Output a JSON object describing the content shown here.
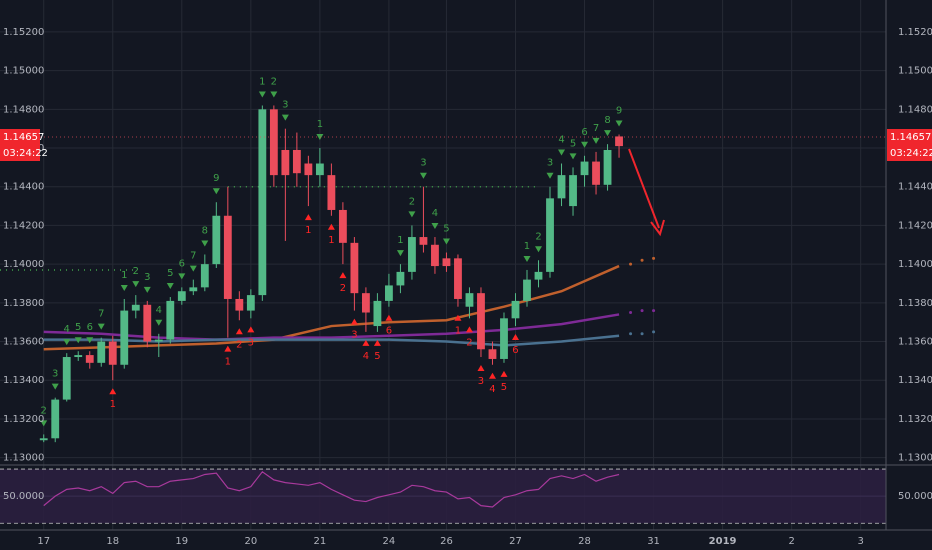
{
  "chart_data": [
    {
      "type": "candlestick",
      "xlim": [
        -3.8,
        73.2
      ],
      "xticks": [
        {
          "value": 0,
          "label": "17"
        },
        {
          "value": 6,
          "label": "18"
        },
        {
          "value": 12,
          "label": "19"
        },
        {
          "value": 18,
          "label": "20"
        },
        {
          "value": 24,
          "label": "21"
        },
        {
          "value": 30,
          "label": "24"
        },
        {
          "value": 35,
          "label": "26"
        },
        {
          "value": 41,
          "label": "27"
        },
        {
          "value": 47,
          "label": "28"
        },
        {
          "value": 53,
          "label": "31"
        },
        {
          "value": 59,
          "label": "2019"
        },
        {
          "value": 65,
          "label": "2"
        },
        {
          "value": 71,
          "label": "3"
        }
      ],
      "ylim": [
        1.12962,
        1.15365
      ],
      "yticks": [
        {
          "value": 1.152,
          "label": "1.15200"
        },
        {
          "value": 1.15,
          "label": "1.15000"
        },
        {
          "value": 1.148,
          "label": "1.14800"
        },
        {
          "value": 1.146,
          "label": "1.14600"
        },
        {
          "value": 1.144,
          "label": "1.14400"
        },
        {
          "value": 1.142,
          "label": "1.14200"
        },
        {
          "value": 1.14,
          "label": "1.14000"
        },
        {
          "value": 1.138,
          "label": "1.13800"
        },
        {
          "value": 1.136,
          "label": "1.13600"
        },
        {
          "value": 1.134,
          "label": "1.13400"
        },
        {
          "value": 1.132,
          "label": "1.13200"
        },
        {
          "value": 1.13,
          "label": "1.13000"
        }
      ],
      "grid": true,
      "up_color": "#53b987",
      "down_color": "#eb4d5c",
      "open": [
        1.1309,
        1.131,
        1.133,
        1.1352,
        1.1353,
        1.1349,
        1.136,
        1.1348,
        1.1376,
        1.1379,
        1.136,
        1.1361,
        1.1381,
        1.1386,
        1.1388,
        1.14,
        1.1425,
        1.1382,
        1.1376,
        1.1384,
        1.148,
        1.1459,
        1.1459,
        1.1452,
        1.1446,
        1.1446,
        1.1428,
        1.1411,
        1.1385,
        1.1368,
        1.1381,
        1.1389,
        1.1396,
        1.1414,
        1.141,
        1.1403,
        1.1403,
        1.1378,
        1.1385,
        1.1356,
        1.1351,
        1.1372,
        1.1381,
        1.1392,
        1.1396,
        1.1434,
        1.143,
        1.1446,
        1.1453,
        1.1441,
        1.1466
      ],
      "high": [
        1.1312,
        1.1331,
        1.1354,
        1.1355,
        1.1355,
        1.1362,
        1.1363,
        1.1382,
        1.1384,
        1.1381,
        1.1364,
        1.1383,
        1.1388,
        1.1392,
        1.1405,
        1.1432,
        1.144,
        1.1386,
        1.1387,
        1.1482,
        1.1482,
        1.147,
        1.1468,
        1.1456,
        1.146,
        1.1452,
        1.1432,
        1.1414,
        1.1388,
        1.1385,
        1.1395,
        1.14,
        1.142,
        1.144,
        1.1414,
        1.1406,
        1.1405,
        1.1388,
        1.1388,
        1.136,
        1.1375,
        1.1385,
        1.1397,
        1.1402,
        1.144,
        1.1452,
        1.145,
        1.1456,
        1.1458,
        1.1462,
        1.1467
      ],
      "low": [
        1.1308,
        1.1308,
        1.1329,
        1.135,
        1.1346,
        1.1347,
        1.134,
        1.1346,
        1.1372,
        1.1357,
        1.1352,
        1.1359,
        1.1379,
        1.1384,
        1.1386,
        1.1398,
        1.1362,
        1.1371,
        1.1372,
        1.1381,
        1.144,
        1.1412,
        1.144,
        1.143,
        1.144,
        1.1425,
        1.14,
        1.1376,
        1.1365,
        1.1365,
        1.1378,
        1.1385,
        1.1392,
        1.1406,
        1.1395,
        1.1396,
        1.1378,
        1.1372,
        1.1352,
        1.1348,
        1.1349,
        1.1368,
        1.1378,
        1.1388,
        1.1393,
        1.143,
        1.1425,
        1.144,
        1.1436,
        1.1438,
        1.1455
      ],
      "close": [
        1.131,
        1.133,
        1.1352,
        1.1353,
        1.1349,
        1.136,
        1.1348,
        1.1376,
        1.1379,
        1.136,
        1.1361,
        1.1381,
        1.1386,
        1.1388,
        1.14,
        1.1425,
        1.1382,
        1.1376,
        1.1384,
        1.148,
        1.1446,
        1.1446,
        1.1447,
        1.1446,
        1.1452,
        1.1428,
        1.1411,
        1.1385,
        1.1375,
        1.1381,
        1.1389,
        1.1396,
        1.1414,
        1.141,
        1.1399,
        1.1399,
        1.1382,
        1.1385,
        1.1356,
        1.1351,
        1.1372,
        1.1381,
        1.1392,
        1.1396,
        1.1434,
        1.1446,
        1.1446,
        1.1453,
        1.1441,
        1.1459,
        1.1461
      ],
      "moving_averages": [
        {
          "color": "#c0602d",
          "x": [
            0,
            5,
            10,
            15,
            20,
            25,
            30,
            35,
            40,
            45,
            50
          ],
          "values": [
            1.1356,
            1.1357,
            1.1358,
            1.1359,
            1.1361,
            1.1368,
            1.137,
            1.1371,
            1.1378,
            1.1386,
            1.1399
          ],
          "forecast_x": [
            51,
            52,
            53
          ],
          "forecast": [
            1.14,
            1.1402,
            1.1403
          ]
        },
        {
          "color": "#7e2a96",
          "x": [
            0,
            5,
            10,
            15,
            20,
            25,
            30,
            35,
            40,
            45,
            50
          ],
          "values": [
            1.1365,
            1.1364,
            1.1362,
            1.1361,
            1.1362,
            1.1362,
            1.1363,
            1.1364,
            1.1366,
            1.1369,
            1.1374
          ],
          "forecast_x": [
            51,
            52,
            53
          ],
          "forecast": [
            1.1375,
            1.1376,
            1.1376
          ]
        },
        {
          "color": "#4a7190",
          "x": [
            0,
            5,
            10,
            15,
            20,
            25,
            30,
            35,
            40,
            45,
            50
          ],
          "values": [
            1.1361,
            1.1361,
            1.136,
            1.1361,
            1.1361,
            1.1361,
            1.1361,
            1.136,
            1.1358,
            1.136,
            1.1363
          ],
          "forecast_x": [
            51,
            52,
            53
          ],
          "forecast": [
            1.1364,
            1.1364,
            1.1365
          ]
        }
      ],
      "levels": [
        {
          "value": 1.1397,
          "x": [
            -3.8,
            8
          ],
          "color": "#3fa04a"
        },
        {
          "value": 1.144,
          "x": [
            16,
            43
          ],
          "color": "#3fa04a"
        }
      ],
      "setup_color_sell": "#3fa04a",
      "setup_color_buy": "#ff2525",
      "td_sell": [
        [
          0,
          "2"
        ],
        [
          1,
          "3"
        ],
        [
          2,
          "4"
        ],
        [
          3,
          "5"
        ],
        [
          4,
          "6"
        ],
        [
          5,
          "7"
        ],
        [
          7,
          "1"
        ],
        [
          8,
          "2"
        ],
        [
          9,
          "3"
        ],
        [
          10,
          "4"
        ],
        [
          11,
          "5"
        ],
        [
          12,
          "6"
        ],
        [
          13,
          "7"
        ],
        [
          14,
          "8"
        ],
        [
          15,
          "9"
        ],
        [
          19,
          "1"
        ],
        [
          20,
          "2"
        ],
        [
          21,
          "3"
        ],
        [
          24,
          "1"
        ],
        [
          31,
          "1"
        ],
        [
          32,
          "2"
        ],
        [
          33,
          "3"
        ],
        [
          34,
          "4"
        ],
        [
          35,
          "5"
        ],
        [
          42,
          "1"
        ],
        [
          43,
          "2"
        ],
        [
          44,
          "3"
        ],
        [
          45,
          "4"
        ],
        [
          46,
          "5"
        ],
        [
          47,
          "6"
        ],
        [
          48,
          "7"
        ],
        [
          49,
          "8"
        ],
        [
          50,
          "9"
        ]
      ],
      "td_buy": [
        [
          6,
          "1"
        ],
        [
          16,
          "1"
        ],
        [
          17,
          "2"
        ],
        [
          18,
          "3"
        ],
        [
          23,
          "1"
        ],
        [
          25,
          "1"
        ],
        [
          26,
          "2"
        ],
        [
          27,
          "3"
        ],
        [
          28,
          "4"
        ],
        [
          29,
          "5"
        ],
        [
          30,
          "6"
        ],
        [
          36,
          "1"
        ],
        [
          37,
          "2"
        ],
        [
          38,
          "3"
        ],
        [
          39,
          "4"
        ],
        [
          40,
          "5"
        ],
        [
          41,
          "6"
        ]
      ],
      "last_price": {
        "value": 1.14657,
        "label": "1.14657"
      },
      "countdown": "03:24:22"
    },
    {
      "type": "line",
      "ylim": [
        25,
        73
      ],
      "yticks": [
        {
          "value": 50,
          "label": "50.0000"
        }
      ],
      "bands": [
        70,
        30
      ],
      "color": "#a8399c",
      "values": [
        43,
        50,
        55,
        56,
        54,
        57,
        52,
        60,
        61,
        57,
        57,
        61,
        62,
        63,
        66,
        67,
        56,
        54,
        57,
        68,
        62,
        60,
        59,
        58,
        60,
        55,
        51,
        47,
        46,
        49,
        51,
        53,
        58,
        57,
        54,
        53,
        48,
        49,
        43,
        42,
        49,
        51,
        54,
        55,
        63,
        65,
        63,
        66,
        61,
        64,
        66
      ]
    }
  ]
}
